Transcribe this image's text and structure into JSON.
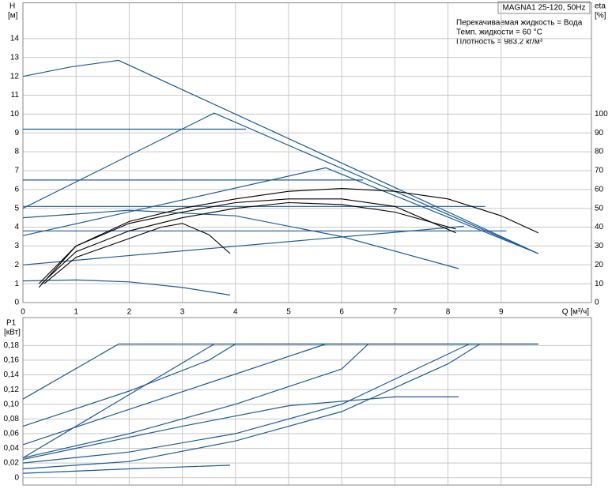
{
  "chart_data": [
    {
      "type": "line",
      "title": "MAGNA1 25-120, 50Hz",
      "annotations": [
        "Перекачиваемая жидкость = Вода",
        "Темп. жидкости = 60 °C",
        "Плотность = 983.2 кг/м³"
      ],
      "ylabel": "H",
      "ylabel_unit": "[м]",
      "y2label": "eta",
      "y2label_unit": "[%]",
      "xlabel": "Q [м³/ч]",
      "xlim": [
        0,
        10.7
      ],
      "xticks": [
        0,
        1,
        2,
        3,
        4,
        5,
        6,
        7,
        8,
        9
      ],
      "ylim": [
        0,
        15.9
      ],
      "yticks": [
        0,
        1,
        2,
        3,
        4,
        5,
        6,
        7,
        8,
        9,
        10,
        11,
        12,
        13,
        14
      ],
      "y2lim": [
        0,
        159
      ],
      "y2ticks": [
        0,
        10,
        20,
        30,
        40,
        50,
        60,
        70,
        80,
        90,
        100
      ],
      "grid": true,
      "series": [
        {
          "color": "#1f5a96",
          "x": [
            0,
            0.9,
            1.8,
            9.7
          ],
          "values": [
            12,
            12.5,
            12.85,
            2.6
          ]
        },
        {
          "color": "#1f5a96",
          "x": [
            0,
            3.6,
            9.7
          ],
          "values": [
            5,
            10.05,
            2.6
          ]
        },
        {
          "color": "#1f5a96",
          "x": [
            0,
            5.7,
            9.7
          ],
          "values": [
            3.55,
            7.15,
            2.6
          ]
        },
        {
          "color": "#1f5a96",
          "x": [
            0,
            8.3
          ],
          "values": [
            2,
            4.05
          ]
        },
        {
          "color": "#1f5a96",
          "x": [
            0,
            4.2
          ],
          "values": [
            9.2,
            9.2
          ]
        },
        {
          "color": "#1f5a96",
          "x": [
            0,
            6.4
          ],
          "values": [
            6.5,
            6.5
          ]
        },
        {
          "color": "#1f5a96",
          "x": [
            0,
            8.7
          ],
          "values": [
            5.1,
            5.1
          ]
        },
        {
          "color": "#1f5a96",
          "x": [
            0,
            9.1
          ],
          "values": [
            3.8,
            3.8
          ]
        },
        {
          "color": "#1f5a96",
          "x": [
            0,
            2,
            4,
            6,
            8.2
          ],
          "values": [
            4.5,
            4.9,
            4.6,
            3.5,
            1.8
          ]
        },
        {
          "color": "#1f5a96",
          "x": [
            0,
            1,
            2,
            3,
            3.9
          ],
          "values": [
            1.15,
            1.2,
            1.1,
            0.8,
            0.4
          ]
        },
        {
          "color": "#000000",
          "axis": "y2",
          "x": [
            0.3,
            1,
            2,
            3,
            4,
            5,
            6,
            7,
            8,
            9,
            9.7
          ],
          "values": [
            8,
            30,
            43,
            50,
            55,
            59,
            60.5,
            59,
            55,
            46,
            37
          ]
        },
        {
          "color": "#000000",
          "axis": "y2",
          "x": [
            0.3,
            1,
            2,
            3,
            4,
            5,
            6,
            7,
            8.15
          ],
          "values": [
            10,
            30,
            42,
            48,
            53,
            55,
            55,
            51,
            37
          ]
        },
        {
          "color": "#000000",
          "axis": "y2",
          "x": [
            0.35,
            1,
            2,
            3,
            4,
            5,
            6,
            7,
            8.15
          ],
          "values": [
            10,
            27,
            38,
            45,
            50,
            53,
            52,
            48,
            39
          ]
        },
        {
          "color": "#000000",
          "axis": "y2",
          "x": [
            0.4,
            1,
            2,
            2.6,
            3,
            3.5,
            3.9
          ],
          "values": [
            10,
            24,
            34,
            40,
            42,
            36,
            26
          ]
        }
      ]
    },
    {
      "type": "line",
      "ylabel": "P1",
      "ylabel_unit": "[кВт]",
      "xlim": [
        0,
        10.7
      ],
      "ylim": [
        -0.01,
        0.218
      ],
      "yticks": [
        0,
        {
          "value": 0.02,
          "label": "0,02"
        },
        {
          "value": 0.04,
          "label": "0,04"
        },
        {
          "value": 0.06,
          "label": "0,06"
        },
        {
          "value": 0.08,
          "label": "0,08"
        },
        {
          "value": 0.1,
          "label": "0,10"
        },
        {
          "value": 0.12,
          "label": "0,12"
        },
        {
          "value": 0.14,
          "label": "0,14"
        },
        {
          "value": 0.16,
          "label": "0,16"
        },
        {
          "value": 0.18,
          "label": "0,18"
        }
      ],
      "grid": true,
      "series": [
        {
          "color": "#1f5a96",
          "x": [
            0,
            1.8,
            9.7
          ],
          "values": [
            0.107,
            0.182,
            0.182
          ]
        },
        {
          "color": "#1f5a96",
          "x": [
            0,
            2,
            3.5,
            4,
            9.7
          ],
          "values": [
            0.07,
            0.118,
            0.16,
            0.182,
            0.182
          ]
        },
        {
          "color": "#1f5a96",
          "x": [
            0,
            3.6
          ],
          "values": [
            0.027,
            0.182
          ]
        },
        {
          "color": "#1f5a96",
          "x": [
            0,
            5.7
          ],
          "values": [
            0.045,
            0.182
          ]
        },
        {
          "color": "#1f5a96",
          "x": [
            0,
            2,
            4,
            6,
            6.5
          ],
          "values": [
            0.027,
            0.06,
            0.1,
            0.148,
            0.182
          ]
        },
        {
          "color": "#1f5a96",
          "x": [
            0,
            3,
            5,
            7,
            8.2
          ],
          "values": [
            0.025,
            0.07,
            0.098,
            0.11,
            0.11
          ]
        },
        {
          "color": "#1f5a96",
          "x": [
            0,
            2,
            4,
            6,
            8.4
          ],
          "values": [
            0.02,
            0.035,
            0.06,
            0.1,
            0.182
          ]
        },
        {
          "color": "#1f5a96",
          "x": [
            0,
            2,
            4,
            6,
            8,
            8.6
          ],
          "values": [
            0.012,
            0.022,
            0.05,
            0.09,
            0.155,
            0.182
          ]
        },
        {
          "color": "#1f5a96",
          "x": [
            0,
            2,
            3.9
          ],
          "values": [
            0.006,
            0.012,
            0.017
          ]
        }
      ]
    }
  ]
}
